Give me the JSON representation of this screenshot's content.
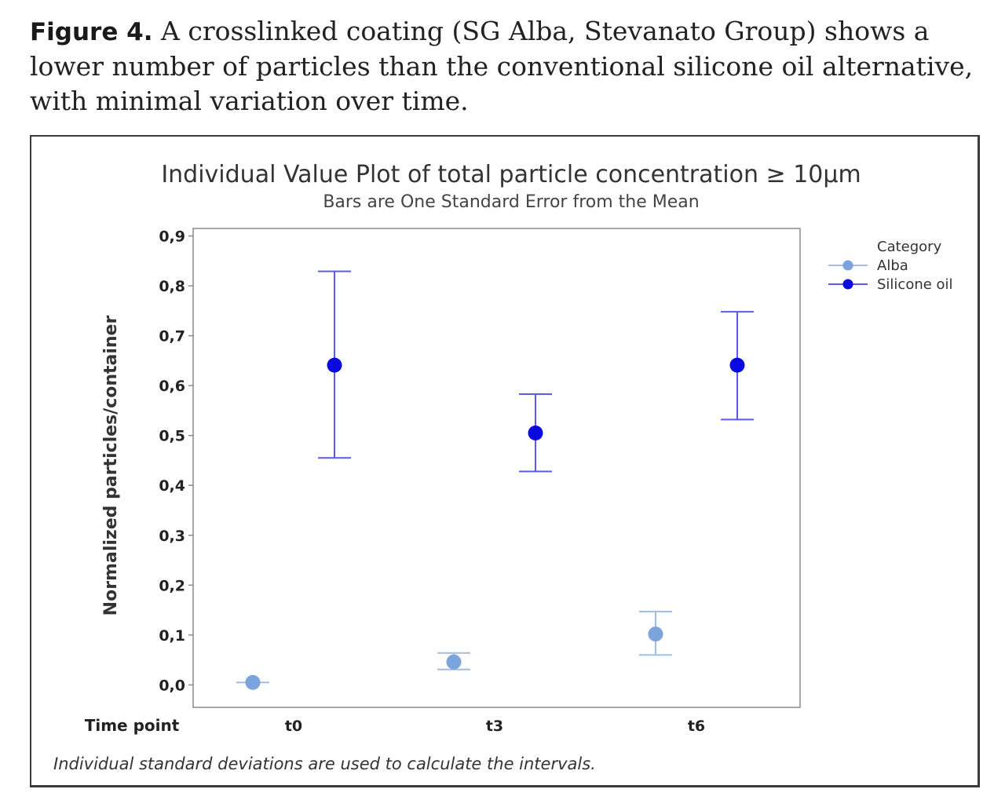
{
  "caption": {
    "label": "Figure 4.",
    "text": "A crosslinked coating (SG Alba, Stevanato Group) shows a lower number of particles than the conventional silicone oil alternative, with minimal variation over time."
  },
  "chart_data": {
    "type": "scatter",
    "title": "Individual Value Plot of total particle concentration ≥ 10µm",
    "subtitle": "Bars are One Standard Error from the Mean",
    "ylabel": "Normalized particles/container",
    "xlabel": "Time point",
    "categories": [
      "t0",
      "t3",
      "t6"
    ],
    "ylim": [
      -0.045,
      0.915
    ],
    "yticks": [
      0.0,
      0.1,
      0.2,
      0.3,
      0.4,
      0.5,
      0.6,
      0.7,
      0.8,
      0.9
    ],
    "ytick_labels": [
      "0,0",
      "0,1",
      "0,2",
      "0,3",
      "0,4",
      "0,5",
      "0,6",
      "0,7",
      "0,8",
      "0,9"
    ],
    "legend_title": "Category",
    "legend_position": "top-right, outside plot",
    "series": [
      {
        "name": "Alba",
        "color": "#7ba3dc",
        "means": [
          0.005,
          0.046,
          0.102
        ],
        "lower": [
          0.005,
          0.031,
          0.06
        ],
        "upper": [
          0.005,
          0.064,
          0.147
        ]
      },
      {
        "name": "Silicone oil",
        "color": "#0a0ae0",
        "means": [
          0.641,
          0.505,
          0.641
        ],
        "lower": [
          0.455,
          0.428,
          0.532
        ],
        "upper": [
          0.829,
          0.583,
          0.748
        ]
      }
    ],
    "footnote": "Individual standard deviations are used to calculate the intervals."
  },
  "colors": {
    "axis": "#8a8a8a",
    "errorbar_silicone": "#5a5af0",
    "errorbar_alba": "#9fbde6"
  }
}
